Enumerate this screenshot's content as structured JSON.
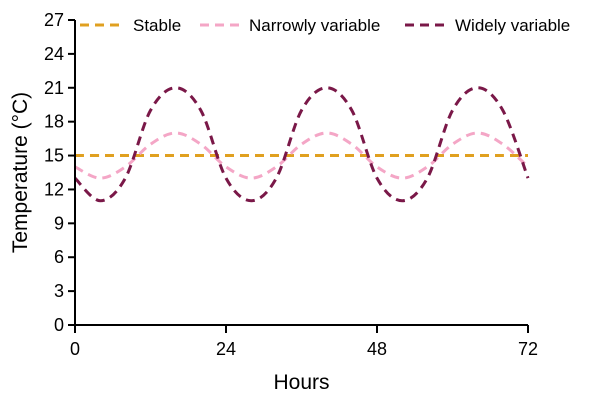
{
  "chart_data": {
    "type": "line",
    "xlabel": "Hours",
    "ylabel": "Temperature (°C)",
    "xlim": [
      0,
      72
    ],
    "ylim": [
      0,
      27
    ],
    "xticks": [
      0,
      24,
      48,
      72
    ],
    "yticks": [
      0,
      3,
      6,
      9,
      12,
      15,
      18,
      21,
      24,
      27
    ],
    "grid": false,
    "legend_position": "top",
    "x": [
      0,
      4,
      8,
      12,
      16,
      20,
      24,
      28,
      32,
      36,
      40,
      44,
      48,
      52,
      56,
      60,
      64,
      68,
      72
    ],
    "series": [
      {
        "name": "Stable",
        "color": "#E0A020",
        "dash": "dashed",
        "values": [
          15,
          15,
          15,
          15,
          15,
          15,
          15,
          15,
          15,
          15,
          15,
          15,
          15,
          15,
          15,
          15,
          15,
          15,
          15
        ]
      },
      {
        "name": "Narrowly variable",
        "color": "#F4A6C6",
        "dash": "dashed",
        "values": [
          14.0,
          13.0,
          14.0,
          16.0,
          17.0,
          16.0,
          14.0,
          13.0,
          14.0,
          16.0,
          17.0,
          16.0,
          14.0,
          13.0,
          14.0,
          16.0,
          17.0,
          16.0,
          14.0
        ]
      },
      {
        "name": "Widely variable",
        "color": "#7A1848",
        "dash": "dashed",
        "values": [
          13.0,
          11.0,
          13.0,
          19.0,
          21.0,
          19.0,
          13.0,
          11.0,
          13.0,
          19.0,
          21.0,
          19.0,
          13.0,
          11.0,
          13.0,
          19.0,
          21.0,
          19.0,
          13.0
        ]
      }
    ]
  }
}
